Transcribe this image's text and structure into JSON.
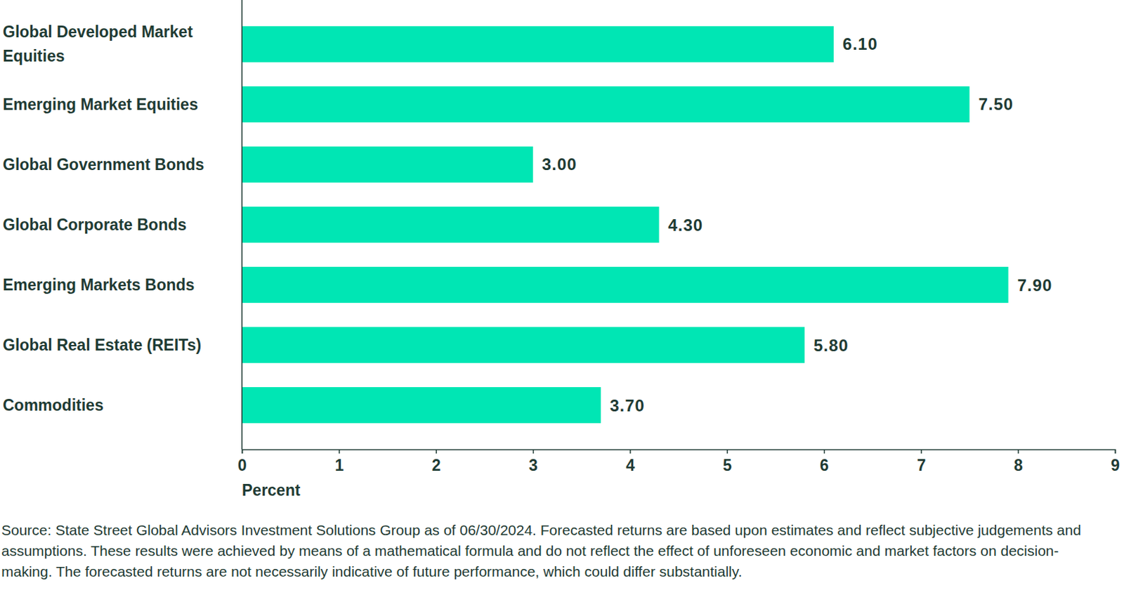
{
  "chart_data": {
    "type": "bar",
    "orientation": "horizontal",
    "categories": [
      "Global Developed Market Equities",
      "Emerging Market Equities",
      "Global Government Bonds",
      "Global Corporate Bonds",
      "Emerging Markets Bonds",
      "Global Real Estate (REITs)",
      "Commodities"
    ],
    "values": [
      6.1,
      7.5,
      3.0,
      4.3,
      7.9,
      5.8,
      3.7
    ],
    "value_labels": [
      "6.10",
      "7.50",
      "3.00",
      "4.30",
      "7.90",
      "5.80",
      "3.70"
    ],
    "data_labels": true,
    "color": "#00e6b4",
    "xlabel": "Percent",
    "xlim": [
      0,
      9
    ],
    "xticks": [
      0,
      1,
      2,
      3,
      4,
      5,
      6,
      7,
      8,
      9
    ],
    "grid": false,
    "source": "Source: State Street Global Advisors Investment Solutions Group as of 06/30/2024. Forecasted returns are based upon estimates and reflect subjective judgements and assumptions. These results were achieved by means of a mathematical formula and do not reflect the effect of unforeseen economic and market factors on decision-making. The forecasted returns are not necessarily indicative of future performance, which could differ substantially."
  }
}
